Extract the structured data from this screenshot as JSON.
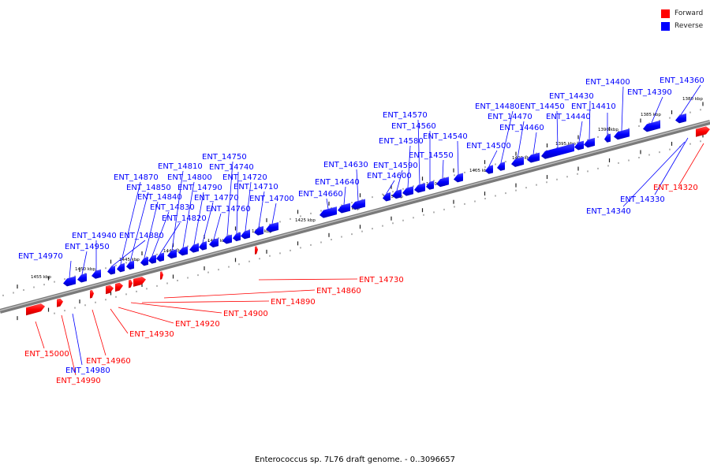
{
  "legend": {
    "forward_label": "Forward",
    "reverse_label": "Reverse",
    "forward_color": "#ff0000",
    "reverse_color": "#0000ff"
  },
  "caption": "Enterococcus sp. 7L76 draft genome. - 0..3096657",
  "scale_labels": [
    "1380 kbp",
    "1385 kbp",
    "1390 kbp",
    "1395 kbp",
    "1400 kbp",
    "1405 kbp",
    "1410 kbp",
    "1415 kbp",
    "1420 kbp",
    "1425 kbp",
    "1430 kbp",
    "1435 kbp",
    "1440 kbp",
    "1445 kbp",
    "1450 kbp",
    "1455 kbp"
  ],
  "genes_reverse": [
    "ENT_14360",
    "ENT_14390",
    "ENT_14400",
    "ENT_14410",
    "ENT_14430",
    "ENT_14440",
    "ENT_14450",
    "ENT_14460",
    "ENT_14470",
    "ENT_14480",
    "ENT_14500",
    "ENT_14540",
    "ENT_14550",
    "ENT_14560",
    "ENT_14570",
    "ENT_14580",
    "ENT_14590",
    "ENT_14600",
    "ENT_14630",
    "ENT_14640",
    "ENT_14660",
    "ENT_14700",
    "ENT_14710",
    "ENT_14720",
    "ENT_14740",
    "ENT_14750",
    "ENT_14760",
    "ENT_14770",
    "ENT_14790",
    "ENT_14800",
    "ENT_14810",
    "ENT_14820",
    "ENT_14830",
    "ENT_14840",
    "ENT_14850",
    "ENT_14870",
    "ENT_14880",
    "ENT_14940",
    "ENT_14950",
    "ENT_14970",
    "ENT_14330",
    "ENT_14340",
    "ENT_14980"
  ],
  "genes_forward": [
    "ENT_14320",
    "ENT_14730",
    "ENT_14860",
    "ENT_14890",
    "ENT_14900",
    "ENT_14920",
    "ENT_14930",
    "ENT_14960",
    "ENT_14990",
    "ENT_15000"
  ]
}
